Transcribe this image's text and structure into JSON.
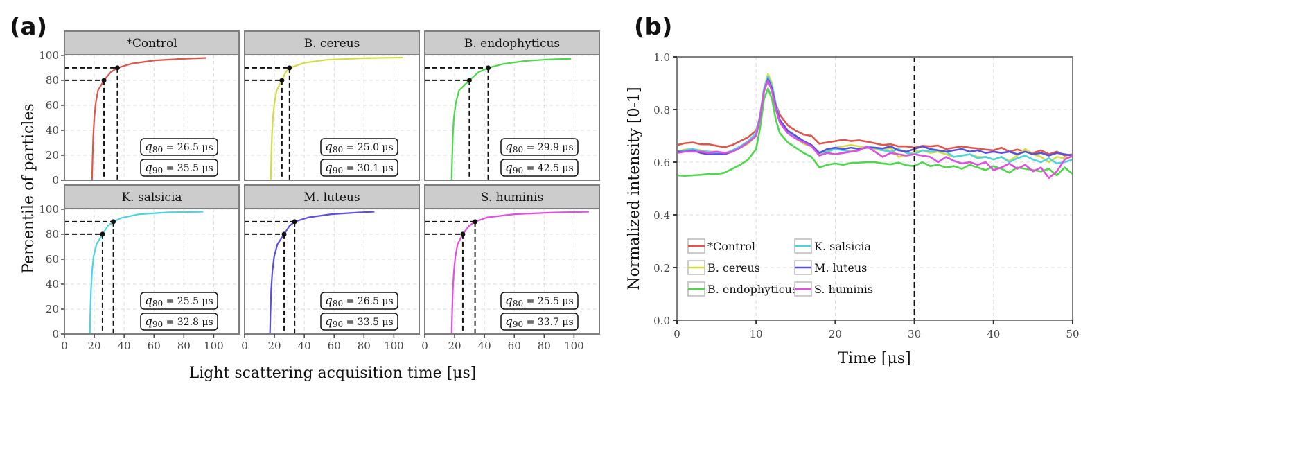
{
  "chart_data": [
    {
      "type": "line",
      "panel_label": "(a)",
      "xlabel": "Light scattering acquisition time [μs]",
      "ylabel": "Percentile of particles",
      "xlim": [
        0,
        117
      ],
      "ylim": [
        0,
        100.5
      ],
      "xticks": [
        0,
        20,
        40,
        60,
        80,
        100
      ],
      "yticks": [
        0,
        20,
        40,
        60,
        80,
        100
      ],
      "grid": true,
      "unit": "μs",
      "facets": [
        {
          "name": "*Control",
          "color": "#e0544a",
          "q80": 26.5,
          "q90": 35.5,
          "points": [
            [
              18.5,
              0
            ],
            [
              18.8,
              15
            ],
            [
              19.3,
              35
            ],
            [
              20,
              50
            ],
            [
              21,
              62
            ],
            [
              22.5,
              72
            ],
            [
              26.5,
              80
            ],
            [
              31,
              86.5
            ],
            [
              35.5,
              90
            ],
            [
              45.5,
              93.5
            ],
            [
              60.5,
              96
            ],
            [
              80,
              97.3
            ],
            [
              95,
              98
            ]
          ]
        },
        {
          "name": "B. cereus",
          "color": "#d4dc44",
          "q80": 25.0,
          "q90": 30.1,
          "points": [
            [
              17.5,
              0
            ],
            [
              17.8,
              15
            ],
            [
              18.3,
              35
            ],
            [
              19,
              50
            ],
            [
              20,
              62
            ],
            [
              21.5,
              72
            ],
            [
              25,
              80
            ],
            [
              27.5,
              86.5
            ],
            [
              30.1,
              90
            ],
            [
              40,
              94
            ],
            [
              55,
              96.5
            ],
            [
              80,
              97.8
            ],
            [
              106,
              98.3
            ]
          ]
        },
        {
          "name": "B. endophyticus",
          "color": "#4cd84a",
          "q80": 29.9,
          "q90": 42.5,
          "points": [
            [
              18,
              0
            ],
            [
              18.3,
              15
            ],
            [
              18.8,
              35
            ],
            [
              19.5,
              50
            ],
            [
              20.8,
              62
            ],
            [
              23,
              72
            ],
            [
              29.9,
              80
            ],
            [
              36,
              86.5
            ],
            [
              42.5,
              90
            ],
            [
              52.5,
              93.2
            ],
            [
              67,
              95.5
            ],
            [
              83,
              96.8
            ],
            [
              98,
              97.3
            ]
          ]
        },
        {
          "name": "K. salsicia",
          "color": "#4ad4e0",
          "q80": 25.5,
          "q90": 32.8,
          "points": [
            [
              17,
              0
            ],
            [
              17.3,
              15
            ],
            [
              17.8,
              35
            ],
            [
              18.5,
              50
            ],
            [
              19.5,
              62
            ],
            [
              21.5,
              72
            ],
            [
              25.5,
              80
            ],
            [
              29,
              86.5
            ],
            [
              32.8,
              90
            ],
            [
              38,
              93
            ],
            [
              50,
              96
            ],
            [
              70,
              97.5
            ],
            [
              93,
              98
            ]
          ]
        },
        {
          "name": "M. luteus",
          "color": "#5850e0",
          "q80": 26.5,
          "q90": 33.5,
          "points": [
            [
              17,
              0
            ],
            [
              17.3,
              15
            ],
            [
              17.8,
              35
            ],
            [
              18.6,
              50
            ],
            [
              19.8,
              62
            ],
            [
              22,
              72
            ],
            [
              26.5,
              80
            ],
            [
              30,
              86.5
            ],
            [
              33.5,
              90
            ],
            [
              43,
              93.5
            ],
            [
              58,
              96
            ],
            [
              75,
              97.3
            ],
            [
              87,
              98
            ]
          ]
        },
        {
          "name": "S. huminis",
          "color": "#e050e0",
          "q80": 25.5,
          "q90": 33.7,
          "points": [
            [
              18,
              0
            ],
            [
              18.3,
              15
            ],
            [
              18.8,
              35
            ],
            [
              19.5,
              50
            ],
            [
              20.5,
              62
            ],
            [
              22,
              72
            ],
            [
              25.5,
              80
            ],
            [
              29.5,
              86.5
            ],
            [
              33.7,
              90
            ],
            [
              42,
              93.5
            ],
            [
              60,
              96
            ],
            [
              85,
              97.3
            ],
            [
              110,
              98
            ]
          ]
        }
      ]
    },
    {
      "type": "line",
      "panel_label": "(b)",
      "xlabel": "Time [μs]",
      "ylabel": "Normalized intensity [0-1]",
      "xlim": [
        0,
        50
      ],
      "ylim": [
        0,
        1.0
      ],
      "xticks": [
        0,
        10,
        20,
        30,
        40,
        50
      ],
      "yticks": [
        "0.0",
        "0.2",
        "0.4",
        "0.6",
        "0.8",
        "1.0"
      ],
      "grid": true,
      "vline_x": 30,
      "legend_position": "bottom-left",
      "x": [
        0,
        1,
        2,
        3,
        4,
        5,
        6,
        7,
        8,
        9,
        10,
        10.5,
        11,
        11.5,
        12,
        12.5,
        13,
        14,
        15,
        16,
        17,
        18,
        19,
        20,
        21,
        22,
        23,
        24,
        25,
        26,
        27,
        28,
        29,
        30,
        31,
        32,
        33,
        34,
        35,
        36,
        37,
        38,
        39,
        40,
        41,
        42,
        43,
        44,
        45,
        46,
        47,
        48,
        49,
        50
      ],
      "series": [
        {
          "name": "*Control",
          "color": "#e0544a",
          "values": [
            0.665,
            0.672,
            0.675,
            0.668,
            0.668,
            0.662,
            0.657,
            0.665,
            0.68,
            0.695,
            0.72,
            0.77,
            0.87,
            0.92,
            0.88,
            0.82,
            0.78,
            0.74,
            0.72,
            0.705,
            0.7,
            0.67,
            0.675,
            0.68,
            0.685,
            0.68,
            0.683,
            0.678,
            0.672,
            0.665,
            0.668,
            0.66,
            0.66,
            0.655,
            0.662,
            0.66,
            0.663,
            0.65,
            0.655,
            0.66,
            0.655,
            0.652,
            0.648,
            0.645,
            0.655,
            0.64,
            0.648,
            0.64,
            0.635,
            0.645,
            0.63,
            0.64,
            0.625,
            0.63
          ]
        },
        {
          "name": "B. cereus",
          "color": "#d4dc44",
          "values": [
            0.64,
            0.648,
            0.65,
            0.645,
            0.64,
            0.64,
            0.635,
            0.64,
            0.655,
            0.67,
            0.7,
            0.77,
            0.88,
            0.935,
            0.9,
            0.82,
            0.76,
            0.71,
            0.69,
            0.67,
            0.66,
            0.63,
            0.645,
            0.655,
            0.66,
            0.665,
            0.66,
            0.655,
            0.65,
            0.645,
            0.655,
            0.62,
            0.625,
            0.64,
            0.645,
            0.635,
            0.64,
            0.63,
            0.62,
            0.625,
            0.63,
            0.62,
            0.62,
            0.61,
            0.62,
            0.605,
            0.625,
            0.65,
            0.63,
            0.62,
            0.6,
            0.62,
            0.615,
            0.62
          ]
        },
        {
          "name": "B. endophyticus",
          "color": "#4cd84a",
          "values": [
            0.55,
            0.548,
            0.55,
            0.552,
            0.555,
            0.555,
            0.56,
            0.575,
            0.59,
            0.61,
            0.65,
            0.73,
            0.84,
            0.88,
            0.84,
            0.76,
            0.71,
            0.675,
            0.655,
            0.635,
            0.62,
            0.58,
            0.59,
            0.595,
            0.59,
            0.597,
            0.598,
            0.6,
            0.6,
            0.595,
            0.592,
            0.598,
            0.588,
            0.585,
            0.6,
            0.585,
            0.59,
            0.58,
            0.585,
            0.575,
            0.59,
            0.58,
            0.57,
            0.585,
            0.575,
            0.56,
            0.58,
            0.575,
            0.57,
            0.565,
            0.575,
            0.55,
            0.58,
            0.555
          ]
        },
        {
          "name": "K. salsicia",
          "color": "#4ad4e0",
          "values": [
            0.64,
            0.645,
            0.65,
            0.642,
            0.64,
            0.635,
            0.632,
            0.645,
            0.66,
            0.68,
            0.71,
            0.78,
            0.88,
            0.925,
            0.89,
            0.82,
            0.76,
            0.715,
            0.695,
            0.675,
            0.665,
            0.635,
            0.64,
            0.65,
            0.645,
            0.64,
            0.645,
            0.66,
            0.655,
            0.645,
            0.64,
            0.65,
            0.635,
            0.63,
            0.645,
            0.64,
            0.645,
            0.64,
            0.62,
            0.625,
            0.63,
            0.615,
            0.62,
            0.61,
            0.62,
            0.6,
            0.615,
            0.625,
            0.61,
            0.6,
            0.615,
            0.595,
            0.6,
            0.61
          ]
        },
        {
          "name": "M. luteus",
          "color": "#5850e0",
          "values": [
            0.64,
            0.64,
            0.645,
            0.635,
            0.63,
            0.63,
            0.63,
            0.64,
            0.655,
            0.675,
            0.7,
            0.77,
            0.87,
            0.915,
            0.88,
            0.81,
            0.76,
            0.72,
            0.7,
            0.68,
            0.665,
            0.635,
            0.65,
            0.655,
            0.65,
            0.655,
            0.65,
            0.655,
            0.655,
            0.652,
            0.66,
            0.645,
            0.64,
            0.65,
            0.66,
            0.65,
            0.645,
            0.64,
            0.645,
            0.65,
            0.64,
            0.645,
            0.635,
            0.64,
            0.635,
            0.64,
            0.63,
            0.64,
            0.63,
            0.635,
            0.625,
            0.635,
            0.63,
            0.625
          ]
        },
        {
          "name": "S. huminis",
          "color": "#e050e0",
          "values": [
            0.635,
            0.64,
            0.64,
            0.64,
            0.635,
            0.64,
            0.635,
            0.64,
            0.655,
            0.675,
            0.7,
            0.77,
            0.87,
            0.91,
            0.87,
            0.8,
            0.75,
            0.71,
            0.69,
            0.675,
            0.66,
            0.625,
            0.635,
            0.63,
            0.635,
            0.64,
            0.645,
            0.66,
            0.64,
            0.62,
            0.635,
            0.63,
            0.625,
            0.63,
            0.625,
            0.62,
            0.6,
            0.62,
            0.605,
            0.595,
            0.6,
            0.59,
            0.6,
            0.57,
            0.58,
            0.595,
            0.575,
            0.59,
            0.565,
            0.58,
            0.54,
            0.565,
            0.61,
            0.625
          ]
        }
      ]
    }
  ]
}
